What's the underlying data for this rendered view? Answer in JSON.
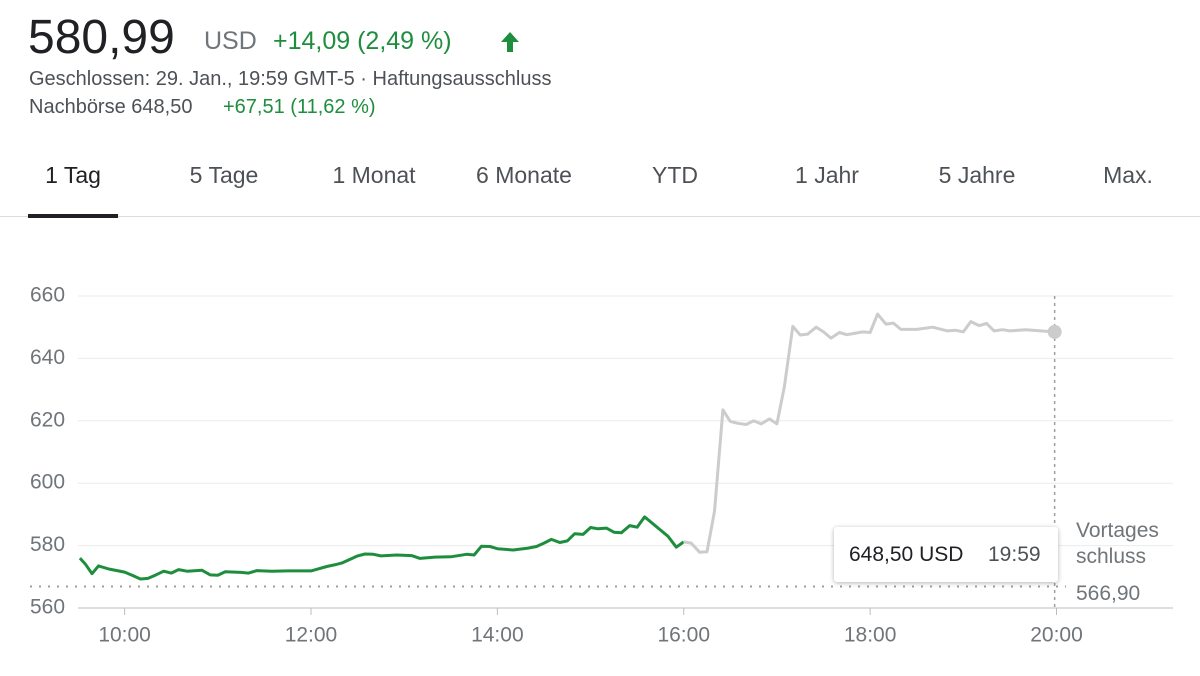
{
  "header": {
    "price": "580,99",
    "currency": "USD",
    "change": "+14,09 (2,49 %)",
    "status": "Geschlossen: 29. Jan., 19:59 GMT-5 · Haftungsausschluss",
    "after_hours": "Nachbörse 648,50",
    "after_hours_change": "+67,51 (11,62 %)"
  },
  "tabs": [
    "1 Tag",
    "5 Tage",
    "1 Monat",
    "6 Monate",
    "YTD",
    "1 Jahr",
    "5 Jahre",
    "Max."
  ],
  "chart_data": {
    "type": "line",
    "xlim": [
      9.5,
      21.25
    ],
    "ylim": [
      560,
      660
    ],
    "xticks": [
      {
        "value": 10,
        "label": "10:00"
      },
      {
        "value": 12,
        "label": "12:00"
      },
      {
        "value": 14,
        "label": "14:00"
      },
      {
        "value": 16,
        "label": "16:00"
      },
      {
        "value": 18,
        "label": "18:00"
      },
      {
        "value": 20,
        "label": "20:00"
      }
    ],
    "yticks": [
      560,
      580,
      600,
      620,
      640,
      660
    ],
    "grid": true,
    "series": [
      {
        "name": "Handelszeit",
        "color": "#1e8e3e",
        "x": [
          9.52,
          9.58,
          9.65,
          9.72,
          9.83,
          10.0,
          10.08,
          10.17,
          10.25,
          10.33,
          10.42,
          10.5,
          10.58,
          10.67,
          10.83,
          10.92,
          11.0,
          11.08,
          11.25,
          11.33,
          11.42,
          11.58,
          11.75,
          12.0,
          12.17,
          12.25,
          12.33,
          12.5,
          12.58,
          12.67,
          12.75,
          12.92,
          13.08,
          13.17,
          13.33,
          13.5,
          13.67,
          13.75,
          13.83,
          13.92,
          14.0,
          14.17,
          14.33,
          14.42,
          14.5,
          14.58,
          14.67,
          14.75,
          14.83,
          14.92,
          15.0,
          15.08,
          15.17,
          15.25,
          15.33,
          15.42,
          15.5,
          15.58,
          15.67,
          15.75,
          15.83,
          15.92,
          16.0
        ],
        "values": [
          576,
          574,
          571,
          573.5,
          572.5,
          571.5,
          570.5,
          569.3,
          569.5,
          570.5,
          571.8,
          571.2,
          572.3,
          571.8,
          572.1,
          570.6,
          570.5,
          571.6,
          571.4,
          571.2,
          572,
          571.8,
          571.9,
          571.9,
          573.3,
          573.8,
          574.4,
          576.7,
          577.3,
          577.2,
          576.7,
          577,
          576.8,
          575.9,
          576.3,
          576.4,
          577.2,
          577,
          579.8,
          579.7,
          579,
          578.6,
          579.2,
          579.7,
          580.8,
          582,
          581,
          581.5,
          583.8,
          583.6,
          585.8,
          585.4,
          585.6,
          584.3,
          584.1,
          586.4,
          585.9,
          589.2,
          587,
          585,
          583,
          579.5,
          581.2
        ]
      },
      {
        "name": "Nachbörse",
        "color": "#cccccc",
        "x": [
          16.0,
          16.08,
          16.17,
          16.25,
          16.33,
          16.42,
          16.5,
          16.58,
          16.67,
          16.75,
          16.83,
          16.92,
          17.0,
          17.08,
          17.17,
          17.25,
          17.33,
          17.42,
          17.5,
          17.58,
          17.67,
          17.75,
          17.83,
          17.92,
          18.0,
          18.08,
          18.17,
          18.25,
          18.33,
          18.5,
          18.67,
          18.83,
          18.92,
          19.0,
          19.08,
          19.17,
          19.25,
          19.33,
          19.42,
          19.5,
          19.67,
          19.83,
          19.98
        ],
        "values": [
          581.2,
          580.8,
          577.9,
          578,
          591,
          623.5,
          619.8,
          619.2,
          618.8,
          620,
          619,
          620.6,
          619,
          631,
          650.3,
          647.5,
          647.8,
          650,
          648.5,
          646.5,
          648.3,
          647.6,
          648,
          648.5,
          648.3,
          654.2,
          651,
          651.3,
          649.3,
          649.3,
          650,
          648.8,
          649,
          648.5,
          651.8,
          650.5,
          651.2,
          648.8,
          649.2,
          648.8,
          649.2,
          648.8,
          648.5
        ]
      }
    ],
    "reference": {
      "label": "Vortages schluss",
      "value": {
        "value": 566.9,
        "label": "566,90"
      }
    },
    "tooltip": {
      "price": "648,50 USD",
      "time": "19:59"
    }
  }
}
